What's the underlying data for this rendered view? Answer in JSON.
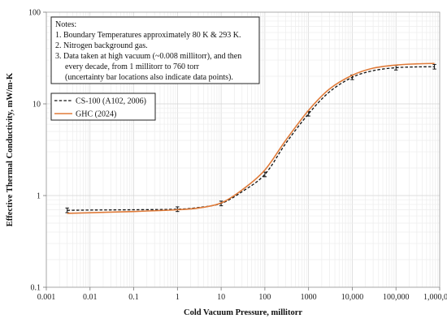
{
  "chart_data": {
    "type": "line",
    "xlabel": "Cold Vacuum Pressure, millitorr",
    "ylabel": "Effective Thermal Conductivity, mW/m-K",
    "x_scale": "log",
    "y_scale": "log",
    "xlim": [
      0.001,
      1000000
    ],
    "ylim": [
      0.1,
      100
    ],
    "grid": true,
    "x_ticks": [
      {
        "value": 0.001,
        "label": "0.001"
      },
      {
        "value": 0.01,
        "label": "0.01"
      },
      {
        "value": 0.1,
        "label": "0.1"
      },
      {
        "value": 1,
        "label": "1"
      },
      {
        "value": 10,
        "label": "10"
      },
      {
        "value": 100,
        "label": "100"
      },
      {
        "value": 1000,
        "label": "1000"
      },
      {
        "value": 10000,
        "label": "10,000"
      },
      {
        "value": 100000,
        "label": "100,000"
      },
      {
        "value": 1000000,
        "label": "1,000,000"
      }
    ],
    "y_ticks": [
      {
        "value": 0.1,
        "label": "0.1"
      },
      {
        "value": 1,
        "label": "1"
      },
      {
        "value": 10,
        "label": "10"
      },
      {
        "value": 100,
        "label": "100"
      }
    ],
    "notes": [
      "Notes:",
      "1. Boundary Temperatures approximately 80 K & 293 K.",
      "2. Nitrogen background gas.",
      "3. Data taken at high vacuum (~0.008 millitorr), and then",
      "every decade, from 1 millitorr to 760 torr",
      "(uncertainty bar locations also indicate data points)."
    ],
    "legend_position": "upper-left",
    "series": [
      {
        "name": "CS-100 (A102, 2006)",
        "color": "#111111",
        "style": "dashed",
        "x": [
          0.003,
          0.01,
          0.1,
          1,
          3,
          10,
          30,
          100,
          300,
          1000,
          3000,
          10000,
          30000,
          100000,
          300000,
          760000
        ],
        "y": [
          0.69,
          0.695,
          0.7,
          0.71,
          0.74,
          0.82,
          1.1,
          1.7,
          3.7,
          7.8,
          13.5,
          19.5,
          23.0,
          24.8,
          25.3,
          25.4
        ],
        "error_x": [
          0.003,
          1,
          10,
          100,
          1000,
          10000,
          100000,
          760000
        ],
        "error_y": [
          0.69,
          0.71,
          0.82,
          1.7,
          7.8,
          19.5,
          24.8,
          25.4
        ]
      },
      {
        "name": "GHC (2024)",
        "color": "#e07b39",
        "style": "solid",
        "x": [
          0.003,
          0.01,
          0.1,
          1,
          3,
          10,
          30,
          100,
          300,
          1000,
          3000,
          10000,
          30000,
          100000,
          300000,
          760000
        ],
        "y": [
          0.64,
          0.65,
          0.67,
          0.7,
          0.73,
          0.83,
          1.15,
          1.9,
          4.0,
          8.5,
          14.5,
          20.5,
          24.5,
          26.5,
          27.3,
          27.6
        ]
      }
    ]
  }
}
